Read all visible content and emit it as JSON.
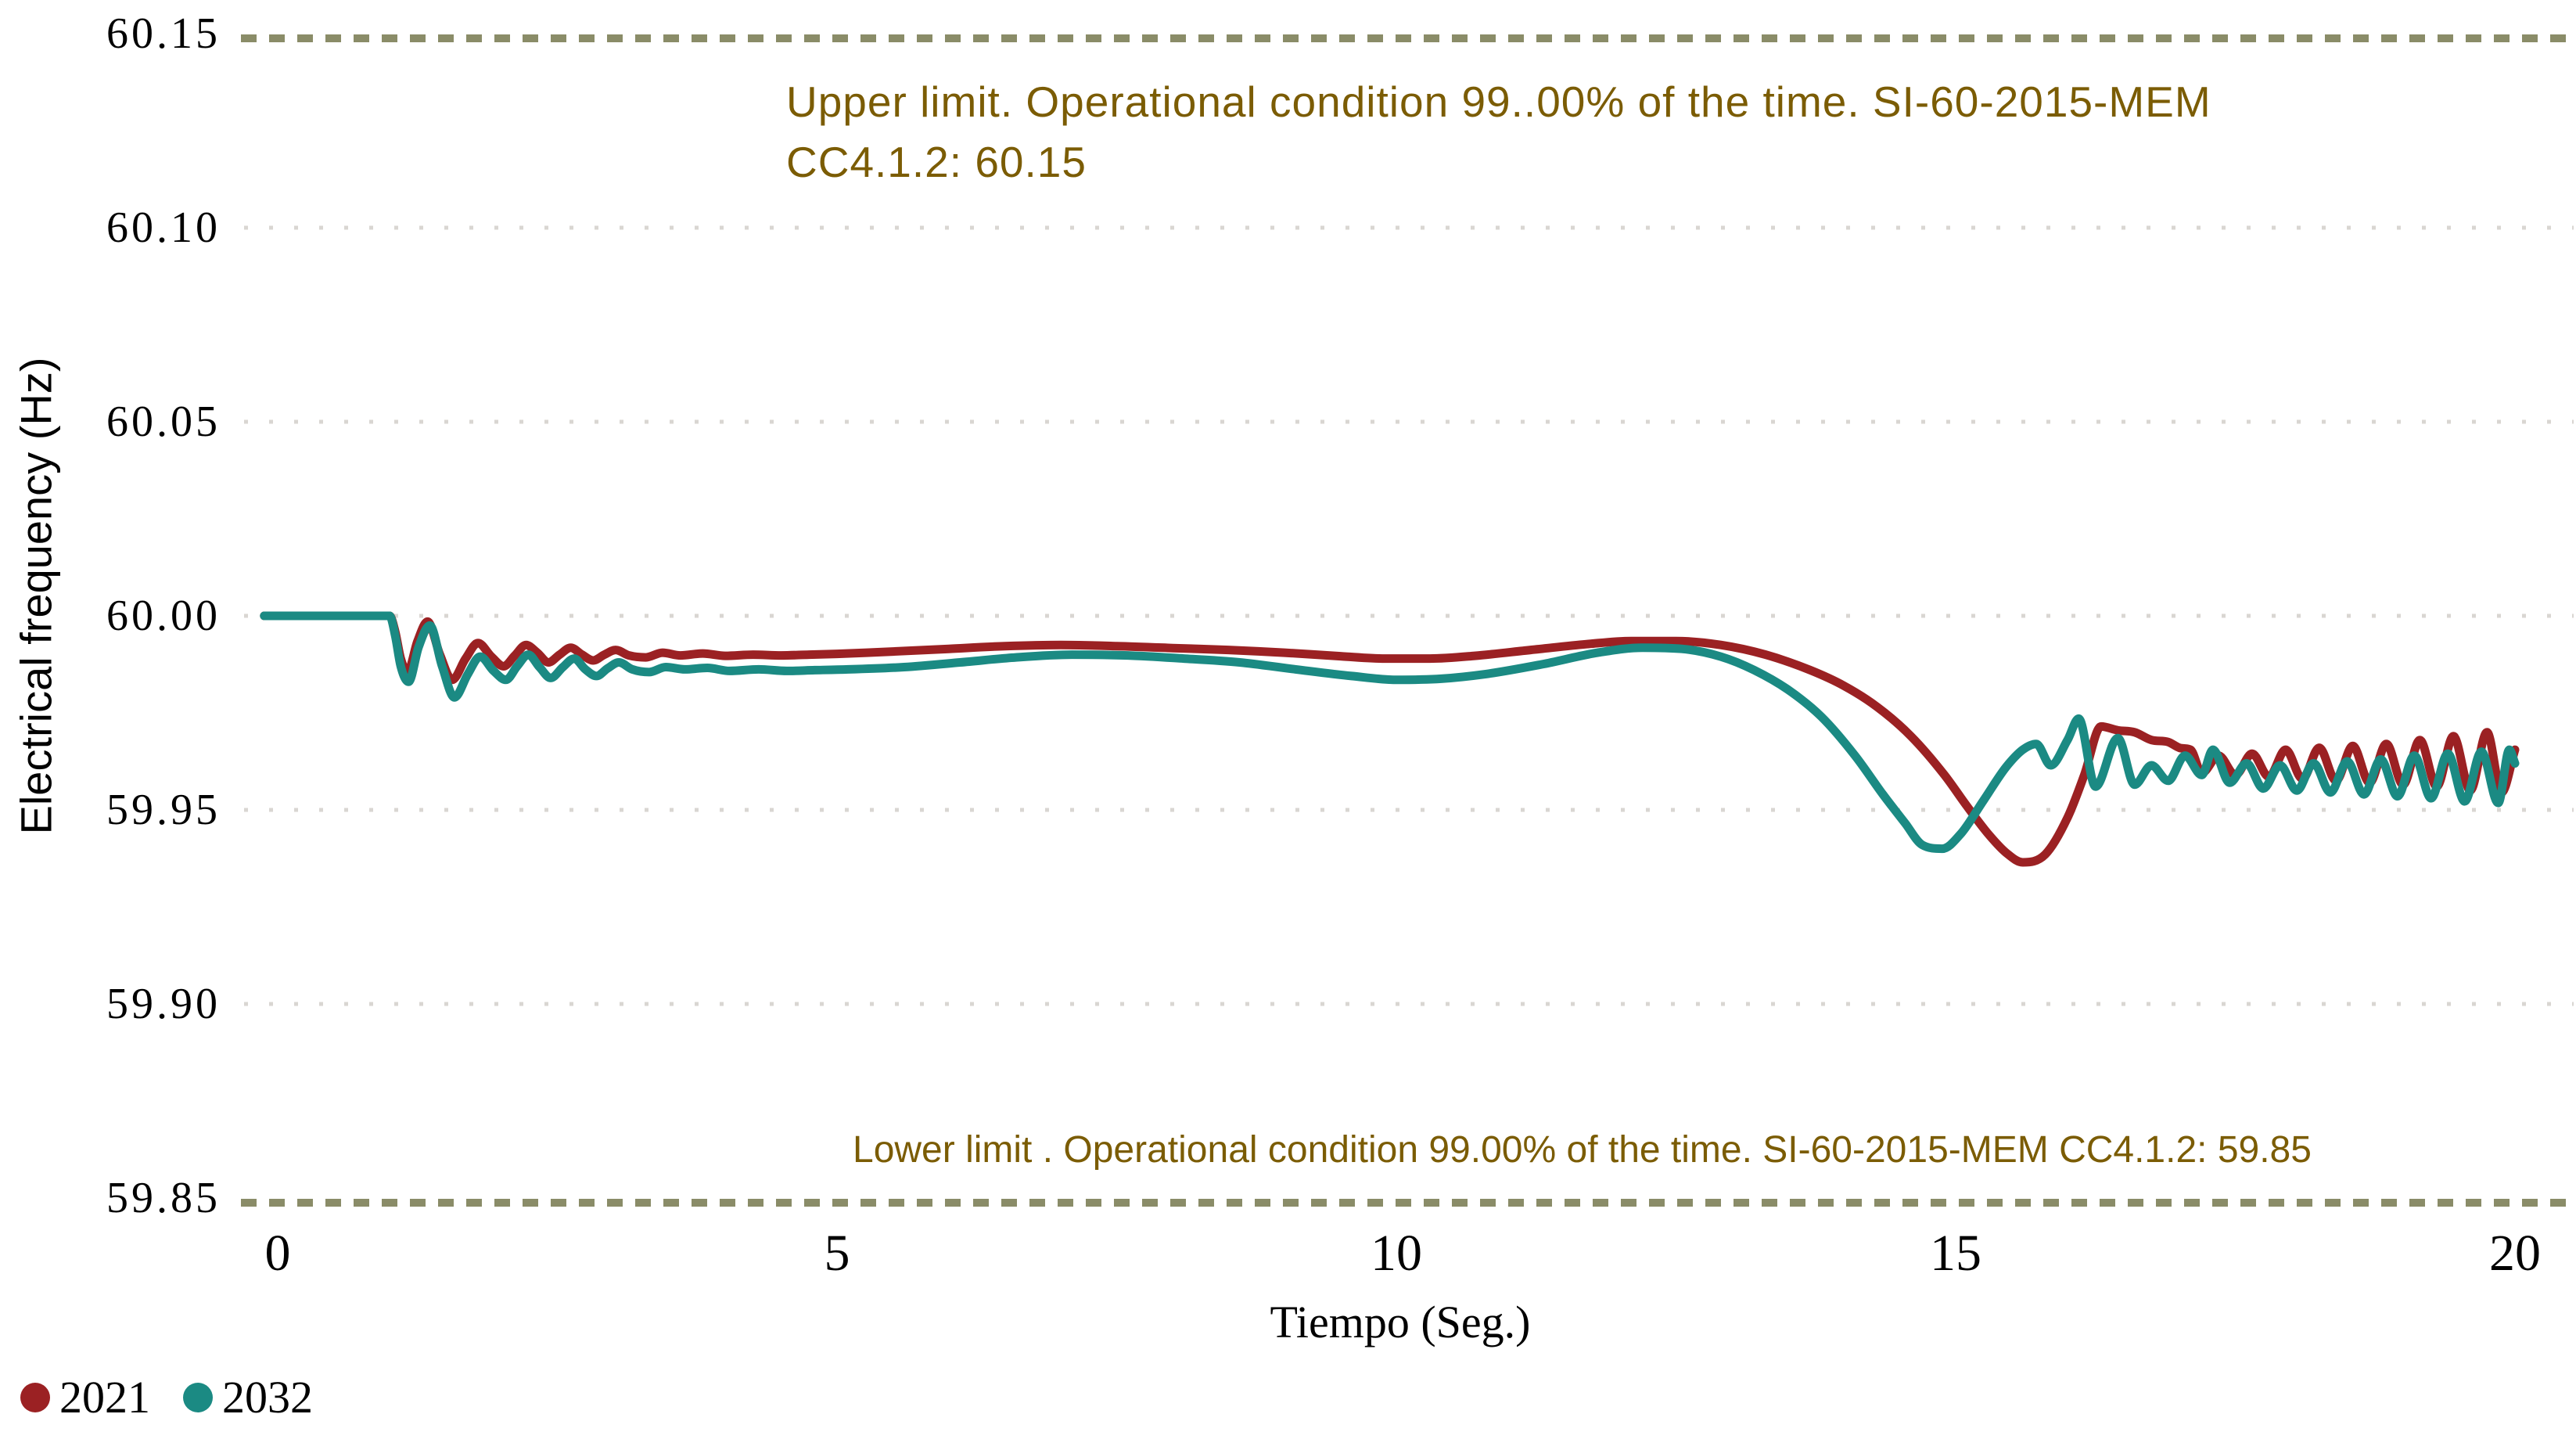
{
  "chart_data": {
    "type": "line",
    "title": "",
    "xlabel": "Tiempo (Seg.)",
    "ylabel": "Electrical frequency (Hz)",
    "xlim": [
      0,
      20
    ],
    "ylim": [
      59.85,
      60.15
    ],
    "x_ticks": [
      0,
      5,
      10,
      15,
      20
    ],
    "y_ticks": [
      "60.15",
      "60.10",
      "60.05",
      "60.00",
      "59.95",
      "59.90",
      "59.85"
    ],
    "y_tick_values": [
      60.15,
      60.1,
      60.05,
      60.0,
      59.95,
      59.9,
      59.85
    ],
    "y_gridline_values": [
      60.1,
      60.05,
      60.0,
      59.95,
      59.9
    ],
    "grid": "dotted horizontal gridlines",
    "legend_position": "bottom-left",
    "limit_lines": [
      {
        "value": 60.15,
        "style": "dashed",
        "color": "#8A8C68",
        "label": "Upper limit. Operational condition 99..00% of the time. SI-60-2015-MEM CC4.1.2: 60.15"
      },
      {
        "value": 59.85,
        "style": "dashed",
        "color": "#8A8C68",
        "label": "Lower limit . Operational condition 99.00% of the time. SI-60-2015-MEM CC4.1.2: 59.85"
      }
    ],
    "series": [
      {
        "name": "2021",
        "color": "#9B2123",
        "points": [
          [
            -0.12,
            60.0
          ],
          [
            0.5,
            60.0
          ],
          [
            1.0,
            60.0
          ],
          [
            1.05,
            59.996
          ],
          [
            1.1,
            59.989
          ],
          [
            1.16,
            59.9855
          ],
          [
            1.25,
            59.9935
          ],
          [
            1.34,
            59.9985
          ],
          [
            1.45,
            59.99
          ],
          [
            1.56,
            59.9835
          ],
          [
            1.68,
            59.989
          ],
          [
            1.79,
            59.993
          ],
          [
            1.91,
            59.9895
          ],
          [
            2.02,
            59.987
          ],
          [
            2.12,
            59.9898
          ],
          [
            2.22,
            59.9925
          ],
          [
            2.32,
            59.9905
          ],
          [
            2.42,
            59.988
          ],
          [
            2.52,
            59.99
          ],
          [
            2.62,
            59.9918
          ],
          [
            2.72,
            59.99
          ],
          [
            2.82,
            59.9885
          ],
          [
            2.92,
            59.99
          ],
          [
            3.02,
            59.9912
          ],
          [
            3.14,
            59.9898
          ],
          [
            3.29,
            59.9893
          ],
          [
            3.44,
            59.9905
          ],
          [
            3.6,
            59.9898
          ],
          [
            3.8,
            59.9903
          ],
          [
            4.0,
            59.9897
          ],
          [
            4.25,
            59.99
          ],
          [
            4.5,
            59.9898
          ],
          [
            4.75,
            59.99
          ],
          [
            5.0,
            59.9902
          ],
          [
            5.5,
            59.9908
          ],
          [
            6.0,
            59.9915
          ],
          [
            6.5,
            59.9922
          ],
          [
            7.0,
            59.9925
          ],
          [
            7.5,
            59.9922
          ],
          [
            8.0,
            59.9917
          ],
          [
            8.5,
            59.9912
          ],
          [
            9.0,
            59.9905
          ],
          [
            9.5,
            59.9896
          ],
          [
            9.9,
            59.989
          ],
          [
            10.3,
            59.989
          ],
          [
            10.7,
            59.9897
          ],
          [
            11.2,
            59.9912
          ],
          [
            11.7,
            59.9927
          ],
          [
            12.1,
            59.9935
          ],
          [
            12.5,
            59.9935
          ],
          [
            12.9,
            59.9925
          ],
          [
            13.3,
            59.99
          ],
          [
            13.7,
            59.986
          ],
          [
            14.0,
            59.982
          ],
          [
            14.3,
            59.9765
          ],
          [
            14.6,
            59.969
          ],
          [
            14.9,
            59.959
          ],
          [
            15.1,
            59.951
          ],
          [
            15.3,
            59.9435
          ],
          [
            15.45,
            59.939
          ],
          [
            15.6,
            59.9365
          ],
          [
            15.8,
            59.9385
          ],
          [
            16.0,
            59.948
          ],
          [
            16.15,
            59.959
          ],
          [
            16.3,
            59.9715
          ],
          [
            16.45,
            59.9705
          ],
          [
            16.6,
            59.97
          ],
          [
            16.75,
            59.968
          ],
          [
            16.9,
            59.9675
          ],
          [
            17.0,
            59.966
          ],
          [
            17.1,
            59.9655
          ],
          [
            17.2,
            59.9595
          ],
          [
            17.35,
            59.964
          ],
          [
            17.5,
            59.959
          ],
          [
            17.65,
            59.9645
          ],
          [
            17.8,
            59.9585
          ],
          [
            17.95,
            59.9655
          ],
          [
            18.1,
            59.958
          ],
          [
            18.25,
            59.966
          ],
          [
            18.4,
            59.9575
          ],
          [
            18.55,
            59.9665
          ],
          [
            18.7,
            59.957
          ],
          [
            18.85,
            59.967
          ],
          [
            19.0,
            59.9565
          ],
          [
            19.15,
            59.968
          ],
          [
            19.3,
            59.956
          ],
          [
            19.45,
            59.969
          ],
          [
            19.6,
            59.955
          ],
          [
            19.75,
            59.97
          ],
          [
            19.88,
            59.9545
          ],
          [
            20.0,
            59.9655
          ]
        ]
      },
      {
        "name": "2032",
        "color": "#1B8A83",
        "points": [
          [
            -0.12,
            60.0
          ],
          [
            0.5,
            60.0
          ],
          [
            1.0,
            60.0
          ],
          [
            1.05,
            59.995
          ],
          [
            1.1,
            59.987
          ],
          [
            1.17,
            59.983
          ],
          [
            1.26,
            59.992
          ],
          [
            1.36,
            59.9975
          ],
          [
            1.47,
            59.987
          ],
          [
            1.58,
            59.979
          ],
          [
            1.7,
            59.985
          ],
          [
            1.81,
            59.9895
          ],
          [
            1.93,
            59.9858
          ],
          [
            2.04,
            59.9835
          ],
          [
            2.14,
            59.987
          ],
          [
            2.24,
            59.99
          ],
          [
            2.34,
            59.9868
          ],
          [
            2.44,
            59.984
          ],
          [
            2.55,
            59.9868
          ],
          [
            2.65,
            59.989
          ],
          [
            2.75,
            59.9862
          ],
          [
            2.85,
            59.9845
          ],
          [
            2.95,
            59.9865
          ],
          [
            3.05,
            59.988
          ],
          [
            3.17,
            59.9862
          ],
          [
            3.32,
            59.9855
          ],
          [
            3.47,
            59.9868
          ],
          [
            3.64,
            59.9862
          ],
          [
            3.84,
            59.9866
          ],
          [
            4.04,
            59.9858
          ],
          [
            4.3,
            59.9862
          ],
          [
            4.55,
            59.9858
          ],
          [
            4.8,
            59.986
          ],
          [
            5.1,
            59.9862
          ],
          [
            5.6,
            59.9868
          ],
          [
            6.1,
            59.988
          ],
          [
            6.6,
            59.9893
          ],
          [
            7.1,
            59.99
          ],
          [
            7.6,
            59.9898
          ],
          [
            8.1,
            59.989
          ],
          [
            8.6,
            59.988
          ],
          [
            9.1,
            59.9862
          ],
          [
            9.6,
            59.9845
          ],
          [
            10.0,
            59.9835
          ],
          [
            10.4,
            59.9838
          ],
          [
            10.8,
            59.985
          ],
          [
            11.3,
            59.9875
          ],
          [
            11.8,
            59.9905
          ],
          [
            12.2,
            59.9918
          ],
          [
            12.55,
            59.9915
          ],
          [
            12.9,
            59.9895
          ],
          [
            13.2,
            59.986
          ],
          [
            13.5,
            59.981
          ],
          [
            13.8,
            59.974
          ],
          [
            14.1,
            59.964
          ],
          [
            14.35,
            59.954
          ],
          [
            14.55,
            59.9465
          ],
          [
            14.7,
            59.941
          ],
          [
            14.88,
            59.94
          ],
          [
            15.05,
            59.944
          ],
          [
            15.25,
            59.9525
          ],
          [
            15.45,
            59.961
          ],
          [
            15.6,
            59.9655
          ],
          [
            15.72,
            59.967
          ],
          [
            15.85,
            59.9615
          ],
          [
            16.0,
            59.968
          ],
          [
            16.1,
            59.9735
          ],
          [
            16.25,
            59.956
          ],
          [
            16.45,
            59.9685
          ],
          [
            16.6,
            59.9565
          ],
          [
            16.75,
            59.9615
          ],
          [
            16.9,
            59.9575
          ],
          [
            17.05,
            59.964
          ],
          [
            17.2,
            59.959
          ],
          [
            17.3,
            59.9655
          ],
          [
            17.45,
            59.957
          ],
          [
            17.6,
            59.962
          ],
          [
            17.75,
            59.9555
          ],
          [
            17.9,
            59.9615
          ],
          [
            18.05,
            59.955
          ],
          [
            18.2,
            59.962
          ],
          [
            18.35,
            59.9545
          ],
          [
            18.5,
            59.9625
          ],
          [
            18.65,
            59.954
          ],
          [
            18.8,
            59.963
          ],
          [
            18.95,
            59.9535
          ],
          [
            19.1,
            59.964
          ],
          [
            19.25,
            59.953
          ],
          [
            19.4,
            59.9645
          ],
          [
            19.55,
            59.9522
          ],
          [
            19.7,
            59.965
          ],
          [
            19.85,
            59.9518
          ],
          [
            19.95,
            59.9655
          ],
          [
            20.0,
            59.962
          ]
        ]
      }
    ]
  },
  "annotations": {
    "upper_line1": "Upper limit. Operational condition 99..00% of the time. SI-60-2015-MEM",
    "upper_line2": "CC4.1.2: 60.15",
    "lower": "Lower limit . Operational condition 99.00% of the time. SI-60-2015-MEM CC4.1.2: 59.85",
    "color": "#7B5C04"
  },
  "legend": {
    "items": [
      {
        "label": "2021",
        "color": "#9B2123"
      },
      {
        "label": "2032",
        "color": "#1B8A83"
      }
    ]
  },
  "colors": {
    "background": "#FFFFFF",
    "gridline": "#D9D6D2",
    "limit_line": "#8A8C68",
    "annotation_text": "#7B5C04",
    "axis_text": "#000000",
    "series_2021": "#9B2123",
    "series_2032": "#1B8A83"
  }
}
